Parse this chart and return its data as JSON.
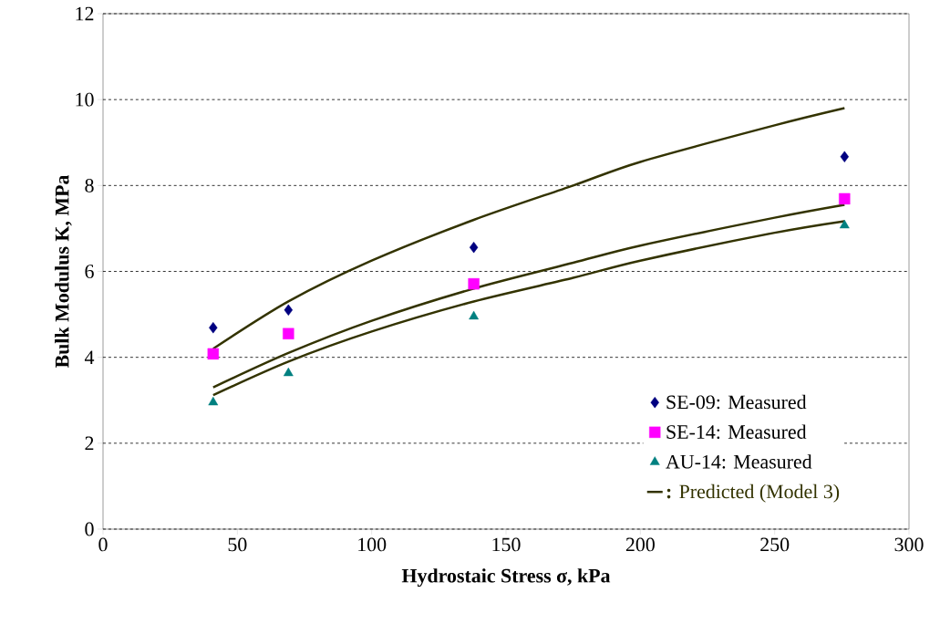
{
  "chart_data": {
    "type": "scatter",
    "xlabel": "Hydrostaic Stress σ, kPa",
    "ylabel": "Bulk Modulus K, MPa",
    "xlim": [
      0,
      300
    ],
    "ylim": [
      0,
      12
    ],
    "xticks": [
      0,
      50,
      100,
      150,
      200,
      250,
      300
    ],
    "yticks": [
      0,
      2,
      4,
      6,
      8,
      10,
      12
    ],
    "grid": "y",
    "legend": "bottom right",
    "series": [
      {
        "name": "SE-09: Measured",
        "marker": "diamond",
        "color": "#000080",
        "x": [
          41,
          69,
          138,
          276
        ],
        "values": [
          4.69,
          5.1,
          6.56,
          8.67
        ]
      },
      {
        "name": "SE-14: Measured",
        "marker": "square",
        "color": "#ff00ff",
        "x": [
          41,
          69,
          138,
          276
        ],
        "values": [
          4.08,
          4.55,
          5.71,
          7.69
        ]
      },
      {
        "name": "AU-14: Measured",
        "marker": "triangle",
        "color": "#008080",
        "x": [
          41,
          69,
          138,
          276
        ],
        "values": [
          2.95,
          3.63,
          4.95,
          7.07
        ]
      },
      {
        "name": "**:** Predicted (Model 3)",
        "type": "line",
        "marker": "none",
        "line_style": "solid",
        "color": "#333300",
        "x": [
          41,
          69,
          100,
          138,
          175,
          200,
          250,
          276
        ],
        "values": [
          4.2,
          5.3,
          6.25,
          7.2,
          8.0,
          8.55,
          9.4,
          9.8
        ]
      },
      {
        "type": "line",
        "marker": "none",
        "line_style": "solid",
        "color": "#333300",
        "x": [
          41,
          69,
          100,
          138,
          175,
          200,
          250,
          276
        ],
        "values": [
          3.3,
          4.1,
          4.85,
          5.6,
          6.2,
          6.6,
          7.25,
          7.55
        ]
      },
      {
        "type": "line",
        "marker": "none",
        "line_style": "solid",
        "color": "#333300",
        "x": [
          41,
          69,
          100,
          138,
          175,
          200,
          250,
          276
        ],
        "values": [
          3.12,
          3.9,
          4.6,
          5.3,
          5.85,
          6.25,
          6.9,
          7.17
        ]
      }
    ]
  }
}
